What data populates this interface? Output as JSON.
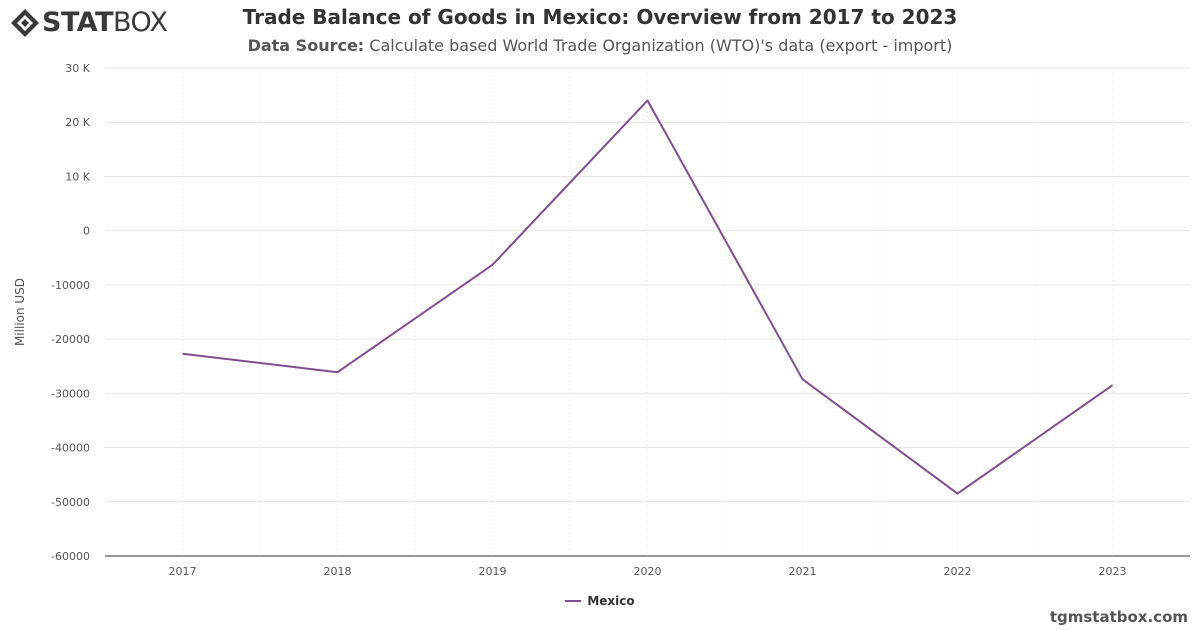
{
  "brand": {
    "logo_bold": "STAT",
    "logo_light": "BOX",
    "logo_icon": "diamond-logo-icon"
  },
  "header": {
    "title": "Trade Balance of Goods in Mexico: Overview from 2017 to 2023",
    "source_label": "Data Source:",
    "source_text": "Calculate based World Trade Organization (WTO)'s data (export - import)"
  },
  "footer": {
    "credit": "tgmstatbox.com"
  },
  "colors": {
    "series": "#7e4e8e",
    "grid": "#e6e6e6",
    "axis": "#333333"
  },
  "chart_data": {
    "type": "line",
    "title": "Trade Balance of Goods in Mexico: Overview from 2017 to 2023",
    "subtitle": "Data Source: Calculate based World Trade Organization (WTO)'s data (export - import)",
    "xlabel": "",
    "ylabel": "Million USD",
    "categories": [
      "2017",
      "2018",
      "2019",
      "2020",
      "2021",
      "2022",
      "2023"
    ],
    "series": [
      {
        "name": "Mexico",
        "values": [
          -22700,
          -26100,
          -6300,
          24000,
          -27400,
          -48500,
          -28500
        ]
      }
    ],
    "ylim": [
      -60000,
      30000
    ],
    "yticks": [
      -60000,
      -50000,
      -40000,
      -30000,
      -20000,
      -10000,
      0,
      10000,
      20000,
      30000
    ],
    "ytick_labels": [
      "-60000",
      "-50000",
      "-40000",
      "-30000",
      "-20000",
      "-10000",
      "0",
      "10 K",
      "20 K",
      "30 K"
    ],
    "grid": true,
    "legend": "bottom-center"
  }
}
